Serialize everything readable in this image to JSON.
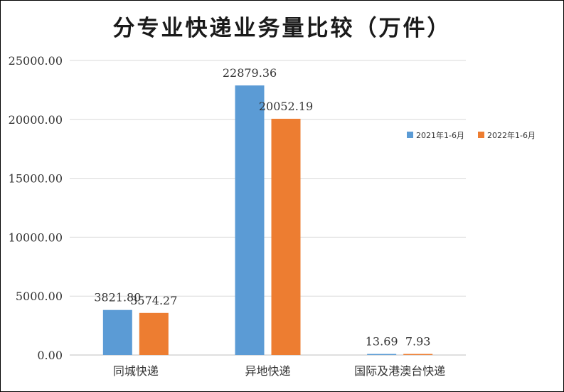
{
  "chart_data": {
    "type": "bar",
    "title": "分专业快递业务量比较（万件）",
    "categories": [
      "同城快递",
      "异地快递",
      "国际及港澳台快递"
    ],
    "series": [
      {
        "name": "2021年1-6月",
        "values": [
          3821.8,
          22879.36,
          13.69
        ],
        "labels": [
          "3821.80",
          "22879.36",
          "13.69"
        ],
        "color": "#5b9bd5"
      },
      {
        "name": "2022年1-6月",
        "values": [
          3574.27,
          20052.19,
          7.93
        ],
        "labels": [
          "3574.27",
          "20052.19",
          "7.93"
        ],
        "color": "#ed7d31"
      }
    ],
    "ylim": [
      0,
      25000
    ],
    "yticks": [
      {
        "value": 0,
        "label": "0.00"
      },
      {
        "value": 5000,
        "label": "5000.00"
      },
      {
        "value": 10000,
        "label": "10000.00"
      },
      {
        "value": 15000,
        "label": "15000.00"
      },
      {
        "value": 20000,
        "label": "20000.00"
      },
      {
        "value": 25000,
        "label": "25000.00"
      }
    ],
    "grid": true,
    "legend_position": "right",
    "xlabel": "",
    "ylabel": ""
  }
}
